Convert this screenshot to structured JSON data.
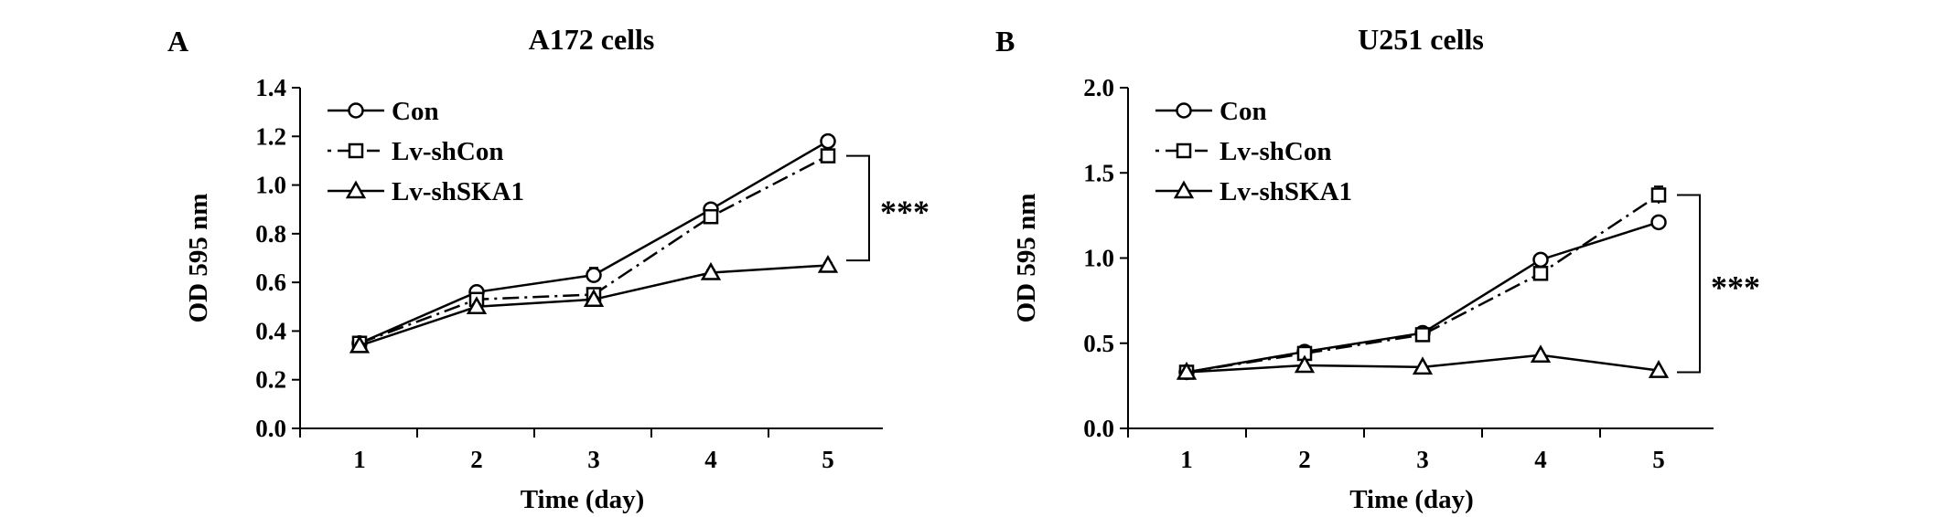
{
  "chart_data": [
    {
      "type": "line",
      "panel_label": "A",
      "title": "A172 cells",
      "xlabel": "Time (day)",
      "ylabel": "OD 595 nm",
      "x": [
        1,
        2,
        3,
        4,
        5
      ],
      "xticks": [
        "1",
        "2",
        "3",
        "4",
        "5"
      ],
      "ylim": [
        0.0,
        1.4
      ],
      "yticks": [
        "0.0",
        "0.2",
        "0.4",
        "0.6",
        "0.8",
        "1.0",
        "1.2",
        "1.4"
      ],
      "series": [
        {
          "name": "Con",
          "marker": "circle",
          "dash": "solid",
          "values": [
            0.35,
            0.56,
            0.63,
            0.9,
            1.18
          ],
          "errors": [
            0.01,
            0.01,
            0.03,
            0.02,
            0.01
          ]
        },
        {
          "name": "Lv-shCon",
          "marker": "square",
          "dash": "dashdot",
          "values": [
            0.35,
            0.53,
            0.55,
            0.87,
            1.12
          ],
          "errors": [
            0.01,
            0.01,
            0.02,
            0.02,
            0.02
          ]
        },
        {
          "name": "Lv-shSKA1",
          "marker": "triangle",
          "dash": "solid",
          "values": [
            0.34,
            0.5,
            0.53,
            0.64,
            0.67
          ],
          "errors": [
            0.01,
            0.01,
            0.01,
            0.01,
            0.01
          ]
        }
      ],
      "significance": {
        "label": "***",
        "from": 1.12,
        "to": 0.69
      },
      "legend": "top-left",
      "grid": false
    },
    {
      "type": "line",
      "panel_label": "B",
      "title": "U251 cells",
      "xlabel": "Time (day)",
      "ylabel": "OD 595 nm",
      "x": [
        1,
        2,
        3,
        4,
        5
      ],
      "xticks": [
        "1",
        "2",
        "3",
        "4",
        "5"
      ],
      "ylim": [
        0.0,
        2.0
      ],
      "yticks": [
        "0.0",
        "0.5",
        "1.0",
        "1.5",
        "2.0"
      ],
      "series": [
        {
          "name": "Con",
          "marker": "circle",
          "dash": "solid",
          "values": [
            0.33,
            0.45,
            0.56,
            0.99,
            1.21
          ],
          "errors": [
            0.01,
            0.01,
            0.01,
            0.02,
            0.02
          ]
        },
        {
          "name": "Lv-shCon",
          "marker": "square",
          "dash": "dashdot",
          "values": [
            0.33,
            0.44,
            0.55,
            0.91,
            1.37
          ],
          "errors": [
            0.01,
            0.01,
            0.01,
            0.02,
            0.05
          ]
        },
        {
          "name": "Lv-shSKA1",
          "marker": "triangle",
          "dash": "solid",
          "values": [
            0.33,
            0.37,
            0.36,
            0.43,
            0.34
          ],
          "errors": [
            0.01,
            0.01,
            0.01,
            0.01,
            0.01
          ]
        }
      ],
      "significance": {
        "label": "***",
        "from": 1.37,
        "to": 0.33
      },
      "legend": "top-left",
      "grid": false
    }
  ]
}
